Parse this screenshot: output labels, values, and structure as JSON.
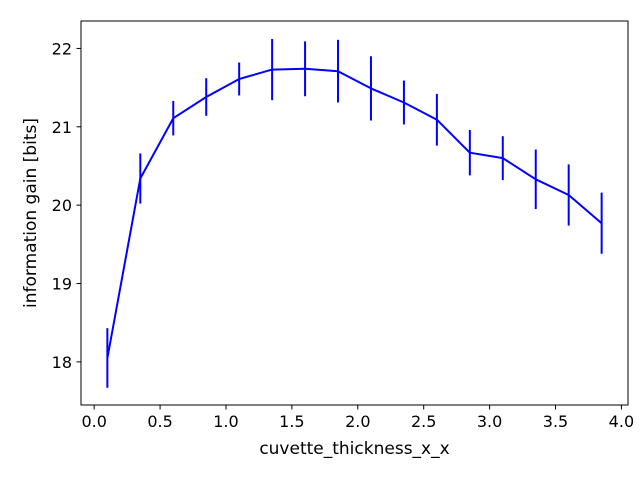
{
  "chart_data": {
    "type": "line",
    "title": "",
    "xlabel": "cuvette_thickness_x_x",
    "ylabel": "information gain [bits]",
    "xlim": [
      -0.1,
      4.05
    ],
    "ylim": [
      17.45,
      22.35
    ],
    "xticks": [
      0.0,
      0.5,
      1.0,
      1.5,
      2.0,
      2.5,
      3.0,
      3.5,
      4.0
    ],
    "xtick_labels": [
      "0.0",
      "0.5",
      "1.0",
      "1.5",
      "2.0",
      "2.5",
      "3.0",
      "3.5",
      "4.0"
    ],
    "yticks": [
      18,
      19,
      20,
      21,
      22
    ],
    "ytick_labels": [
      "18",
      "19",
      "20",
      "21",
      "22"
    ],
    "grid": false,
    "legend": "none",
    "series": [
      {
        "color": "#0000ff",
        "x": [
          0.1,
          0.35,
          0.6,
          0.85,
          1.1,
          1.35,
          1.6,
          1.85,
          2.1,
          2.35,
          2.6,
          2.85,
          3.1,
          3.35,
          3.6,
          3.85
        ],
        "y": [
          18.05,
          20.34,
          21.11,
          21.38,
          21.61,
          21.73,
          21.74,
          21.71,
          21.49,
          21.31,
          21.09,
          20.67,
          20.6,
          20.33,
          20.13,
          19.77
        ],
        "yerr": [
          0.38,
          0.32,
          0.22,
          0.24,
          0.21,
          0.39,
          0.35,
          0.4,
          0.41,
          0.28,
          0.33,
          0.29,
          0.28,
          0.38,
          0.39,
          0.39
        ]
      }
    ]
  }
}
